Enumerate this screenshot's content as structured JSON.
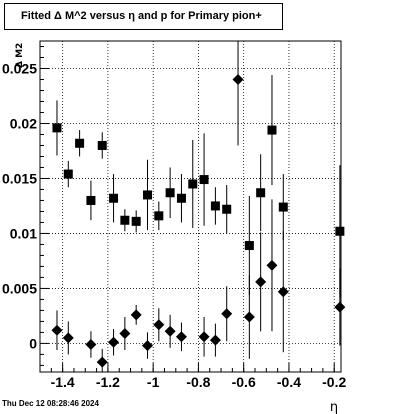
{
  "chart_data": {
    "type": "scatter",
    "title": "Fitted Δ M^2 versus η and p for Primary pion+",
    "xlabel": "η",
    "ylabel": "Δ M2",
    "xlim": [
      -1.5,
      -0.17
    ],
    "ylim": [
      -0.0026,
      0.0275
    ],
    "x_ticks": [
      "-1.4",
      "-1.2",
      "-1",
      "-0.8",
      "-0.6",
      "-0.4",
      "-0.2"
    ],
    "y_ticks": [
      "0",
      "0.005",
      "0.01",
      "0.015",
      "0.02",
      "0.025"
    ],
    "grid": true,
    "series": [
      {
        "marker": "square",
        "points": [
          {
            "x": -1.425,
            "y": 0.0196,
            "err": 0.0025
          },
          {
            "x": -1.375,
            "y": 0.0154,
            "err": 0.0012
          },
          {
            "x": -1.325,
            "y": 0.0182,
            "err": 0.0012
          },
          {
            "x": -1.275,
            "y": 0.013,
            "err": 0.0018
          },
          {
            "x": -1.225,
            "y": 0.018,
            "err": 0.0012
          },
          {
            "x": -1.175,
            "y": 0.0132,
            "err": 0.0022
          },
          {
            "x": -1.125,
            "y": 0.0112,
            "err": 0.001
          },
          {
            "x": -1.075,
            "y": 0.0111,
            "err": 0.001
          },
          {
            "x": -1.025,
            "y": 0.0135,
            "err": 0.0032
          },
          {
            "x": -0.975,
            "y": 0.0116,
            "err": 0.0013
          },
          {
            "x": -0.925,
            "y": 0.0137,
            "err": 0.0023
          },
          {
            "x": -0.875,
            "y": 0.0132,
            "err": 0.0022
          },
          {
            "x": -0.825,
            "y": 0.0145,
            "err": 0.004
          },
          {
            "x": -0.775,
            "y": 0.0149,
            "err": 0.0042
          },
          {
            "x": -0.725,
            "y": 0.0125,
            "err": 0.0017
          },
          {
            "x": -0.675,
            "y": 0.0122,
            "err": 0.0022
          },
          {
            "x": -0.575,
            "y": 0.0089,
            "err": 0.0045
          },
          {
            "x": -0.525,
            "y": 0.0137,
            "err": 0.0035
          },
          {
            "x": -0.475,
            "y": 0.0194,
            "err": 0.005
          },
          {
            "x": -0.425,
            "y": 0.0124,
            "err": 0.003
          },
          {
            "x": -0.175,
            "y": 0.0102,
            "err": 0.006
          }
        ]
      },
      {
        "marker": "diamond",
        "points": [
          {
            "x": -1.425,
            "y": 0.0012,
            "err": 0.0018
          },
          {
            "x": -1.375,
            "y": 0.0005,
            "err": 0.0015
          },
          {
            "x": -1.275,
            "y": -0.0001,
            "err": 0.0012
          },
          {
            "x": -1.225,
            "y": -0.0017,
            "err": 0.0012
          },
          {
            "x": -1.175,
            "y": 0.0001,
            "err": 0.0012
          },
          {
            "x": -1.125,
            "y": 0.0009,
            "err": 0.0015
          },
          {
            "x": -1.075,
            "y": 0.0026,
            "err": 0.0009
          },
          {
            "x": -1.025,
            "y": -0.0002,
            "err": 0.0012
          },
          {
            "x": -0.975,
            "y": 0.0017,
            "err": 0.0015
          },
          {
            "x": -0.925,
            "y": 0.0011,
            "err": 0.0015
          },
          {
            "x": -0.875,
            "y": 0.0006,
            "err": 0.0013
          },
          {
            "x": -0.775,
            "y": 0.0006,
            "err": 0.0018
          },
          {
            "x": -0.725,
            "y": 0.0003,
            "err": 0.0015
          },
          {
            "x": -0.675,
            "y": 0.0027,
            "err": 0.0025
          },
          {
            "x": -0.625,
            "y": 0.024,
            "err": 0.006
          },
          {
            "x": -0.575,
            "y": 0.0024,
            "err": 0.0038
          },
          {
            "x": -0.525,
            "y": 0.0056,
            "err": 0.0045
          },
          {
            "x": -0.475,
            "y": 0.0071,
            "err": 0.006
          },
          {
            "x": -0.425,
            "y": 0.0047,
            "err": 0.0055
          },
          {
            "x": -0.175,
            "y": 0.0033,
            "err": 0.0035
          }
        ]
      }
    ]
  },
  "footer": {
    "timestamp": "Thu Dec 12 08:28:46 2024"
  }
}
